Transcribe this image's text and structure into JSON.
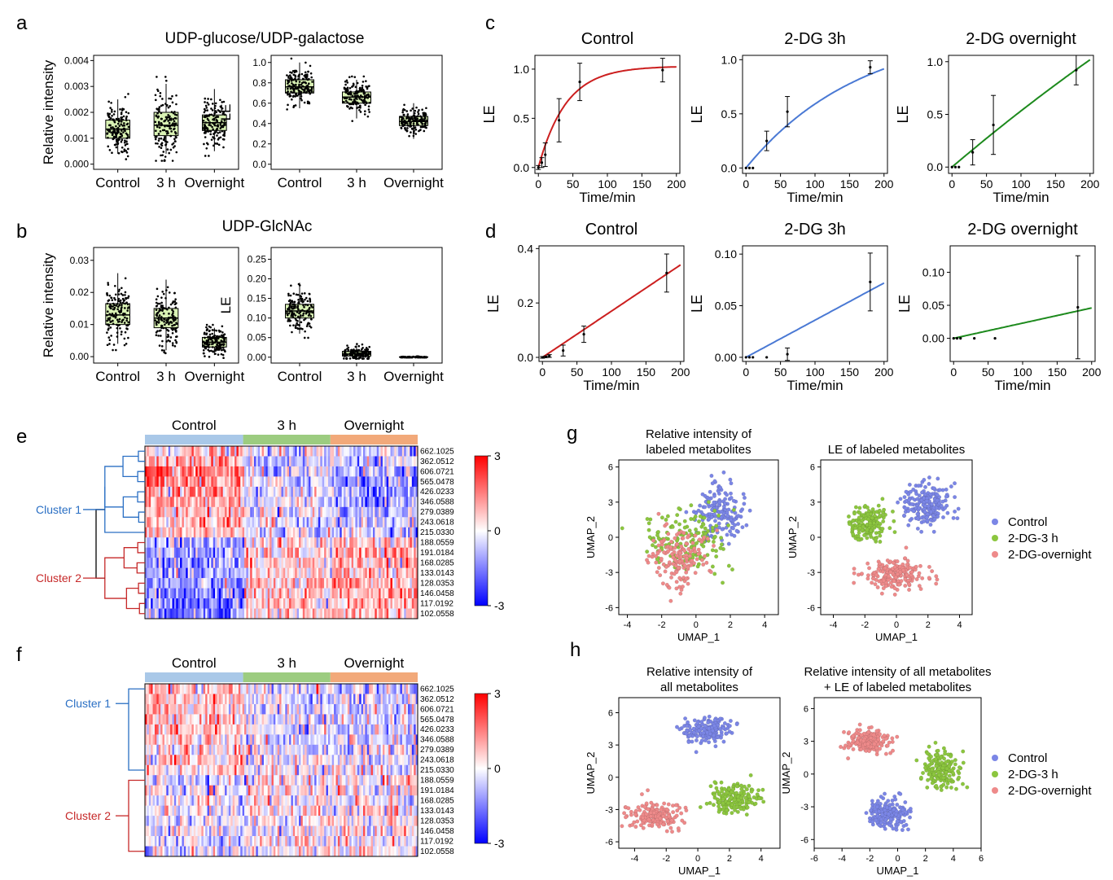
{
  "panel_letters": [
    "a",
    "b",
    "c",
    "d",
    "e",
    "f",
    "g",
    "h"
  ],
  "chart_data": [
    {
      "id": "a1",
      "type": "box",
      "panel": "a",
      "title": "UDP-glucose/UDP-galactose",
      "ylabel": "Relative intensity",
      "categories": [
        "Control",
        "3 h",
        "Overnight"
      ],
      "ylim": [
        -0.0002,
        0.0042
      ],
      "yticks": [
        "0.000",
        "0.001",
        "0.002",
        "0.003",
        "0.004"
      ],
      "ytick_values": [
        0,
        0.001,
        0.002,
        0.003,
        0.004
      ],
      "box_stats": [
        {
          "q1": 0.001,
          "median": 0.00135,
          "q3": 0.0017,
          "whisker_low": 0.0004,
          "whisker_high": 0.0025
        },
        {
          "q1": 0.0011,
          "median": 0.0015,
          "q3": 0.002,
          "whisker_low": 0.0004,
          "whisker_high": 0.0031
        },
        {
          "q1": 0.0013,
          "median": 0.0016,
          "q3": 0.0019,
          "whisker_low": 0.0005,
          "whisker_high": 0.0029
        }
      ],
      "fill": "#d9f2b4"
    },
    {
      "id": "a2",
      "type": "box",
      "panel": "a",
      "ylabel": "LE",
      "categories": [
        "Control",
        "3 h",
        "Overnight"
      ],
      "ylim": [
        -0.05,
        1.07
      ],
      "yticks": [
        "0.0",
        "0.2",
        "0.4",
        "0.6",
        "0.8",
        "1.0"
      ],
      "ytick_values": [
        0,
        0.2,
        0.4,
        0.6,
        0.8,
        1.0
      ],
      "box_stats": [
        {
          "q1": 0.7,
          "median": 0.76,
          "q3": 0.83,
          "whisker_low": 0.55,
          "whisker_high": 1.0
        },
        {
          "q1": 0.6,
          "median": 0.66,
          "q3": 0.71,
          "whisker_low": 0.45,
          "whisker_high": 0.83
        },
        {
          "q1": 0.38,
          "median": 0.42,
          "q3": 0.47,
          "whisker_low": 0.25,
          "whisker_high": 0.6
        }
      ],
      "fill": "#d9f2b4"
    },
    {
      "id": "b1",
      "type": "box",
      "panel": "b",
      "title": "UDP-GlcNAc",
      "ylabel": "Relative intensity",
      "categories": [
        "Control",
        "3 h",
        "Overnight"
      ],
      "ylim": [
        -0.002,
        0.034
      ],
      "yticks": [
        "0.00",
        "0.01",
        "0.02",
        "0.03"
      ],
      "ytick_values": [
        0,
        0.01,
        0.02,
        0.03
      ],
      "box_stats": [
        {
          "q1": 0.01,
          "median": 0.013,
          "q3": 0.0165,
          "whisker_low": 0.004,
          "whisker_high": 0.026
        },
        {
          "q1": 0.009,
          "median": 0.012,
          "q3": 0.015,
          "whisker_low": 0.002,
          "whisker_high": 0.024
        },
        {
          "q1": 0.003,
          "median": 0.0045,
          "q3": 0.006,
          "whisker_low": 0.0005,
          "whisker_high": 0.009
        }
      ],
      "fill": "#d9f2b4"
    },
    {
      "id": "b2",
      "type": "box",
      "panel": "b",
      "ylabel": "LE",
      "categories": [
        "Control",
        "3 h",
        "Overnight"
      ],
      "ylim": [
        -0.015,
        0.28
      ],
      "yticks": [
        "0.00",
        "0.05",
        "0.10",
        "0.15",
        "0.20",
        "0.25"
      ],
      "ytick_values": [
        0,
        0.05,
        0.1,
        0.15,
        0.2,
        0.25
      ],
      "box_stats": [
        {
          "q1": 0.1,
          "median": 0.118,
          "q3": 0.135,
          "whisker_low": 0.06,
          "whisker_high": 0.19
        },
        {
          "q1": 0.003,
          "median": 0.008,
          "q3": 0.015,
          "whisker_low": 0.0,
          "whisker_high": 0.03
        },
        {
          "q1": 0.0,
          "median": 0.0,
          "q3": 0.001,
          "whisker_low": 0.0,
          "whisker_high": 0.002
        }
      ],
      "fill": "#d9f2b4"
    },
    {
      "id": "c1",
      "type": "line",
      "panel": "c",
      "title": "Control",
      "xlabel": "Time/min",
      "ylabel": "LE",
      "xlim": [
        -5,
        205
      ],
      "ylim": [
        -0.06,
        1.14
      ],
      "xticks": [
        0,
        50,
        100,
        150,
        200
      ],
      "yticks": [
        "0.0",
        "0.5",
        "1.0"
      ],
      "ytick_values": [
        0,
        0.5,
        1.0
      ],
      "points": [
        {
          "x": 0,
          "y": 0.0,
          "err": 0.02
        },
        {
          "x": 5,
          "y": 0.05,
          "err": 0.05
        },
        {
          "x": 10,
          "y": 0.13,
          "err": 0.12
        },
        {
          "x": 30,
          "y": 0.48,
          "err": 0.22
        },
        {
          "x": 60,
          "y": 0.87,
          "err": 0.19
        },
        {
          "x": 180,
          "y": 0.99,
          "err": 0.12
        }
      ],
      "fit": {
        "model": "exp",
        "a": 1.03,
        "k": 0.025
      },
      "color": "#cc1f1f"
    },
    {
      "id": "c2",
      "type": "line",
      "panel": "c",
      "title": "2-DG 3h",
      "xlabel": "Time/min",
      "ylabel": "LE",
      "xlim": [
        -5,
        205
      ],
      "ylim": [
        -0.05,
        1.04
      ],
      "xticks": [
        0,
        50,
        100,
        150,
        200
      ],
      "yticks": [
        "0.0",
        "0.5",
        "1.0"
      ],
      "ytick_values": [
        0,
        0.5,
        1.0
      ],
      "points": [
        {
          "x": 0,
          "y": 0.0,
          "err": 0.0
        },
        {
          "x": 5,
          "y": 0.0,
          "err": 0.0
        },
        {
          "x": 10,
          "y": 0.0,
          "err": 0.0
        },
        {
          "x": 30,
          "y": 0.25,
          "err": 0.09
        },
        {
          "x": 60,
          "y": 0.52,
          "err": 0.14
        },
        {
          "x": 180,
          "y": 0.93,
          "err": 0.06
        }
      ],
      "fit": {
        "model": "exp",
        "a": 1.31,
        "k": 0.006
      },
      "color": "#4a79d4"
    },
    {
      "id": "c3",
      "type": "line",
      "panel": "c",
      "title": "2-DG overnight",
      "xlabel": "Time/min",
      "ylabel": "LE",
      "xlim": [
        -5,
        205
      ],
      "ylim": [
        -0.06,
        1.06
      ],
      "xticks": [
        0,
        50,
        100,
        150,
        200
      ],
      "yticks": [
        "0.0",
        "0.5",
        "1.0"
      ],
      "ytick_values": [
        0,
        0.5,
        1.0
      ],
      "points": [
        {
          "x": 0,
          "y": 0.0,
          "err": 0.0
        },
        {
          "x": 5,
          "y": 0.0,
          "err": 0.0
        },
        {
          "x": 10,
          "y": 0.0,
          "err": 0.0
        },
        {
          "x": 30,
          "y": 0.14,
          "err": 0.12
        },
        {
          "x": 60,
          "y": 0.4,
          "err": 0.28
        },
        {
          "x": 180,
          "y": 0.92,
          "err": 0.14
        }
      ],
      "fit": {
        "model": "exp",
        "a": 6.0,
        "k": 0.00093
      },
      "color": "#1d8a1d"
    },
    {
      "id": "d1",
      "type": "line",
      "panel": "d",
      "title": "Control",
      "xlabel": "Time/min",
      "ylabel": "LE",
      "xlim": [
        -5,
        205
      ],
      "ylim": [
        -0.015,
        0.41
      ],
      "xticks": [
        0,
        50,
        100,
        150,
        200
      ],
      "yticks": [
        "0.0",
        "0.2",
        "0.4"
      ],
      "ytick_values": [
        0,
        0.2,
        0.4
      ],
      "points": [
        {
          "x": 0,
          "y": 0.0,
          "err": 0.003
        },
        {
          "x": 5,
          "y": 0.002,
          "err": 0.003
        },
        {
          "x": 10,
          "y": 0.005,
          "err": 0.005
        },
        {
          "x": 30,
          "y": 0.025,
          "err": 0.02
        },
        {
          "x": 60,
          "y": 0.085,
          "err": 0.03
        },
        {
          "x": 180,
          "y": 0.31,
          "err": 0.07
        }
      ],
      "fit": {
        "model": "linear",
        "slope": 0.0017,
        "intercept": 0.0
      },
      "color": "#cc1f1f"
    },
    {
      "id": "d2",
      "type": "line",
      "panel": "d",
      "title": "2-DG 3h",
      "xlabel": "Time/min",
      "ylabel": "LE",
      "xlim": [
        -5,
        205
      ],
      "ylim": [
        -0.004,
        0.108
      ],
      "xticks": [
        0,
        50,
        100,
        150,
        200
      ],
      "yticks": [
        "0.00",
        "0.05",
        "0.10"
      ],
      "ytick_values": [
        0,
        0.05,
        0.1
      ],
      "points": [
        {
          "x": 0,
          "y": 0.0,
          "err": 0.0
        },
        {
          "x": 5,
          "y": 0.0,
          "err": 0.0
        },
        {
          "x": 10,
          "y": 0.0,
          "err": 0.0
        },
        {
          "x": 30,
          "y": 0.0,
          "err": 0.0
        },
        {
          "x": 60,
          "y": 0.003,
          "err": 0.006
        },
        {
          "x": 180,
          "y": 0.073,
          "err": 0.028
        }
      ],
      "fit": {
        "model": "linear",
        "slope": 0.00036,
        "intercept": 0.0
      },
      "color": "#4a79d4"
    },
    {
      "id": "d3",
      "type": "line",
      "panel": "d",
      "title": "2-DG overnight",
      "xlabel": "Time/min",
      "ylabel": "LE",
      "xlim": [
        -5,
        205
      ],
      "ylim": [
        -0.035,
        0.14
      ],
      "xticks": [
        0,
        50,
        100,
        150,
        200
      ],
      "yticks": [
        "0.00",
        "0.05",
        "0.10"
      ],
      "ytick_values": [
        0,
        0.05,
        0.1
      ],
      "points": [
        {
          "x": 0,
          "y": 0.0,
          "err": 0.0
        },
        {
          "x": 5,
          "y": 0.0,
          "err": 0.0
        },
        {
          "x": 10,
          "y": 0.0,
          "err": 0.0
        },
        {
          "x": 30,
          "y": 0.0,
          "err": 0.0
        },
        {
          "x": 60,
          "y": 0.0,
          "err": 0.0
        },
        {
          "x": 180,
          "y": 0.047,
          "err": 0.078
        }
      ],
      "fit": {
        "model": "linear",
        "slope": 0.00023,
        "intercept": 0.0
      },
      "color": "#1d8a1d"
    },
    {
      "id": "e",
      "type": "heatmap",
      "panel": "e",
      "groups": [
        "Control",
        "3 h",
        "Overnight"
      ],
      "group_colors": [
        "#a9c8e8",
        "#9ccc80",
        "#f2a97a"
      ],
      "rows": [
        "662.1025",
        "362.0512",
        "606.0721",
        "565.0478",
        "426.0233",
        "346.0588",
        "279.0389",
        "243.0618",
        "215.0330",
        "188.0559",
        "191.0184",
        "168.0285",
        "133.0143",
        "128.0353",
        "146.0458",
        "117.0192",
        "102.0558"
      ],
      "clusters": [
        {
          "name": "Cluster 1",
          "rows": 9,
          "color": "#2a6fc4"
        },
        {
          "name": "Cluster 2",
          "rows": 8,
          "color": "#c62828"
        }
      ],
      "colorbar": {
        "ticks": [
          "3",
          "0",
          "-3"
        ],
        "range": [
          -3,
          3
        ]
      },
      "row_means_by_group": [
        [
          0.3,
          -0.2,
          -0.1
        ],
        [
          0.6,
          -0.4,
          -0.3
        ],
        [
          0.9,
          -0.5,
          -0.6
        ],
        [
          0.8,
          -0.3,
          -0.7
        ],
        [
          0.7,
          -0.2,
          -0.6
        ],
        [
          0.6,
          -0.1,
          -0.6
        ],
        [
          0.5,
          0.0,
          -0.5
        ],
        [
          0.6,
          -0.1,
          -0.4
        ],
        [
          0.4,
          -0.2,
          -0.3
        ],
        [
          -0.6,
          0.2,
          0.4
        ],
        [
          -0.7,
          0.2,
          0.5
        ],
        [
          -0.7,
          0.3,
          0.5
        ],
        [
          -0.8,
          0.3,
          0.5
        ],
        [
          -0.8,
          0.3,
          0.6
        ],
        [
          -0.9,
          0.4,
          0.6
        ],
        [
          -0.9,
          0.4,
          0.6
        ],
        [
          -0.8,
          0.3,
          0.5
        ]
      ]
    },
    {
      "id": "f",
      "type": "heatmap",
      "panel": "f",
      "groups": [
        "Control",
        "3 h",
        "Overnight"
      ],
      "group_colors": [
        "#a9c8e8",
        "#9ccc80",
        "#f2a97a"
      ],
      "rows": [
        "662.1025",
        "362.0512",
        "606.0721",
        "565.0478",
        "426.0233",
        "346.0588",
        "279.0389",
        "243.0618",
        "215.0330",
        "188.0559",
        "191.0184",
        "168.0285",
        "133.0143",
        "128.0353",
        "146.0458",
        "117.0192",
        "102.0558"
      ],
      "clusters": [
        {
          "name": "Cluster 1",
          "rows": 9,
          "color": "#2a6fc4"
        },
        {
          "name": "Cluster 2",
          "rows": 8,
          "color": "#c62828"
        }
      ],
      "colorbar": {
        "ticks": [
          "3",
          "0",
          "-3"
        ],
        "range": [
          -3,
          3
        ]
      },
      "row_means_by_group": [
        [
          0.4,
          -0.1,
          -0.3
        ],
        [
          0.5,
          -0.2,
          -0.3
        ],
        [
          0.4,
          -0.1,
          -0.3
        ],
        [
          0.5,
          -0.2,
          -0.3
        ],
        [
          0.4,
          -0.1,
          -0.3
        ],
        [
          0.4,
          -0.2,
          -0.2
        ],
        [
          0.3,
          -0.1,
          -0.2
        ],
        [
          0.3,
          -0.1,
          -0.2
        ],
        [
          0.3,
          -0.1,
          -0.2
        ],
        [
          -0.1,
          0.0,
          0.1
        ],
        [
          -0.1,
          0.0,
          0.1
        ],
        [
          0.0,
          0.0,
          0.0
        ],
        [
          -0.1,
          0.0,
          0.1
        ],
        [
          -0.1,
          0.0,
          0.1
        ],
        [
          -0.1,
          0.0,
          0.1
        ],
        [
          -0.1,
          0.1,
          0.0
        ],
        [
          -0.1,
          0.0,
          0.1
        ]
      ]
    },
    {
      "id": "g1",
      "type": "scatter",
      "panel": "g",
      "title": [
        "Relative intensity of",
        "labeled metabolites"
      ],
      "xlabel": "UMAP_1",
      "ylabel": "UMAP_2",
      "xlim": [
        -4.5,
        4.8
      ],
      "ylim": [
        -6.6,
        6.6
      ],
      "xticks": [
        -4,
        -2,
        0,
        2,
        4
      ],
      "yticks": [
        -6,
        -3,
        0,
        3,
        6
      ],
      "clusters": [
        {
          "label": "Control",
          "cx": 1.4,
          "cy": 2.0,
          "sx": 1.4,
          "sy": 2.2,
          "n": 160
        },
        {
          "label": "2-DG-3 h",
          "cx": -0.5,
          "cy": -0.2,
          "sx": 2.0,
          "sy": 2.3,
          "n": 150
        },
        {
          "label": "2-DG-overnight",
          "cx": -1.0,
          "cy": -1.8,
          "sx": 1.6,
          "sy": 2.2,
          "n": 150
        }
      ]
    },
    {
      "id": "g2",
      "type": "scatter",
      "panel": "g",
      "title": [
        "LE of labeled metabolites"
      ],
      "xlabel": "UMAP_1",
      "ylabel": "UMAP_2",
      "xlim": [
        -4.8,
        4.8
      ],
      "ylim": [
        -6.6,
        6.6
      ],
      "xticks": [
        -4,
        -2,
        0,
        2,
        4
      ],
      "yticks": [
        -6,
        -3,
        0,
        3,
        6
      ],
      "clusters": [
        {
          "label": "Control",
          "cx": 1.9,
          "cy": 2.8,
          "sx": 1.3,
          "sy": 1.6,
          "n": 200
        },
        {
          "label": "2-DG-3 h",
          "cx": -1.8,
          "cy": 1.2,
          "sx": 1.2,
          "sy": 1.5,
          "n": 170
        },
        {
          "label": "2-DG-overnight",
          "cx": -0.2,
          "cy": -3.2,
          "sx": 1.7,
          "sy": 1.1,
          "n": 190
        }
      ]
    },
    {
      "id": "h1",
      "type": "scatter",
      "panel": "h",
      "title": [
        "Relative intensity of",
        "all metabolites"
      ],
      "xlabel": "UMAP_1",
      "ylabel": "UMAP_2",
      "xlim": [
        -5,
        5.2
      ],
      "ylim": [
        -6.6,
        7.4
      ],
      "xticks": [
        -4,
        -2,
        0,
        2,
        4
      ],
      "yticks": [
        -6,
        -3,
        0,
        3,
        6
      ],
      "clusters": [
        {
          "label": "Control",
          "cx": 0.7,
          "cy": 4.4,
          "sx": 1.3,
          "sy": 1.1,
          "n": 170
        },
        {
          "label": "2-DG-3 h",
          "cx": 2.2,
          "cy": -2.0,
          "sx": 1.5,
          "sy": 1.2,
          "n": 180
        },
        {
          "label": "2-DG-overnight",
          "cx": -2.7,
          "cy": -3.5,
          "sx": 1.5,
          "sy": 1.1,
          "n": 180
        }
      ]
    },
    {
      "id": "h2",
      "type": "scatter",
      "panel": "h",
      "title": [
        "Relative intensity of all metabolites",
        "+ LE of labeled metabolites"
      ],
      "xlabel": "UMAP_1",
      "ylabel": "UMAP_2",
      "xlim": [
        -6,
        6
      ],
      "ylim": [
        -6.8,
        7.0
      ],
      "xticks": [
        -6,
        -4,
        -2,
        0,
        2,
        4,
        6
      ],
      "yticks": [
        -6,
        -3,
        0,
        3,
        6
      ],
      "clusters": [
        {
          "label": "Control",
          "cx": -0.7,
          "cy": -3.6,
          "sx": 1.3,
          "sy": 1.2,
          "n": 180
        },
        {
          "label": "2-DG-3 h",
          "cx": 3.2,
          "cy": 0.5,
          "sx": 1.2,
          "sy": 1.5,
          "n": 180
        },
        {
          "label": "2-DG-overnight",
          "cx": -2.2,
          "cy": 3.0,
          "sx": 1.3,
          "sy": 1.0,
          "n": 170
        }
      ]
    }
  ],
  "legend_g": [
    {
      "label": "Control",
      "color": "#7b86e6"
    },
    {
      "label": "2-DG-3 h",
      "color": "#8cc63f"
    },
    {
      "label": "2-DG-overnight",
      "color": "#ee8a8a"
    }
  ],
  "legend_h": [
    {
      "label": "Control",
      "color": "#7b86e6"
    },
    {
      "label": "2-DG-3 h",
      "color": "#8cc63f"
    },
    {
      "label": "2-DG-overnight",
      "color": "#ee8a8a"
    }
  ],
  "scatter_colors": {
    "Control": "#7b86e6",
    "2-DG-3 h": "#8cc63f",
    "2-DG-overnight": "#ee8a8a"
  }
}
